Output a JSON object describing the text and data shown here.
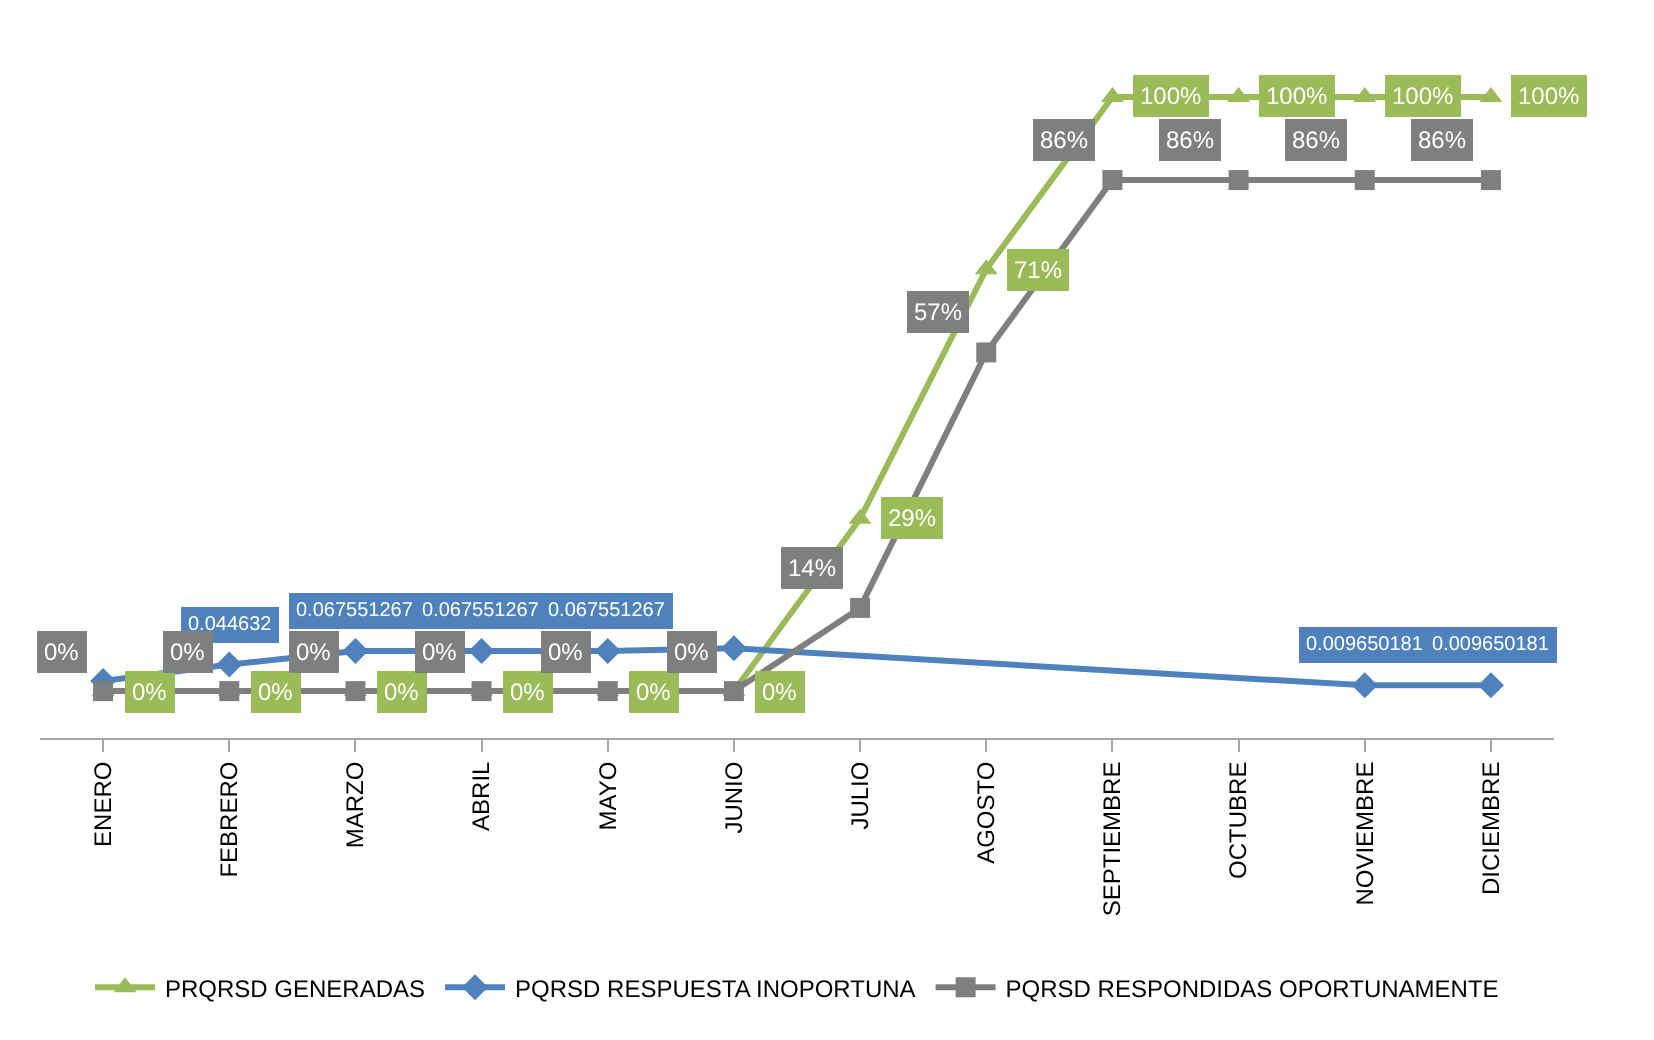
{
  "chart_data": {
    "type": "line",
    "categories": [
      "ENERO",
      "FEBRERO",
      "MARZO",
      "ABRIL",
      "MAYO",
      "JUNIO",
      "JULIO",
      "AGOSTO",
      "SEPTIEMBRE",
      "OCTUBRE",
      "NOVIEMBRE",
      "DICIEMBRE"
    ],
    "grid": false,
    "legend": "bottom",
    "tick_labels": "x",
    "data_labels": false,
    "series": [
      {
        "name": "PRQRSD GENERADAS",
        "color": "#9bbb59",
        "marker": "triangle",
        "values": [
          0,
          0,
          0,
          0,
          0,
          0,
          0.29,
          0.71,
          1,
          1,
          1,
          1
        ],
        "value_labels": [
          "0%",
          "0%",
          "0%",
          "0%",
          "0%",
          "0%",
          "29%",
          "71%",
          "100%",
          "100%",
          "100%",
          "100%"
        ]
      },
      {
        "name": "PQRSD RESPUESTA INOPORTUNA",
        "color": "#4f81bd",
        "marker": "diamond",
        "values": [
          0.017,
          0.044632,
          0.067551267,
          0.067551267,
          0.067551267,
          0.072,
          null,
          null,
          null,
          null,
          0.009650181,
          0.009650181
        ],
        "value_labels": [
          null,
          "0.044632",
          "0.067551267",
          "0.067551267",
          "0.067551267",
          null,
          null,
          null,
          null,
          null,
          "0.009650181",
          "0.009650181"
        ]
      },
      {
        "name": "PQRSD RESPONDIDAS OPORTUNAMENTE",
        "color": "#7f7f7f",
        "marker": "square",
        "values": [
          0,
          0,
          0,
          0,
          0,
          0,
          0.14,
          0.57,
          0.86,
          0.86,
          0.86,
          0.86
        ],
        "value_labels": [
          "0%",
          "0%",
          "0%",
          "0%",
          "0%",
          "0%",
          "14%",
          "57%",
          "86%",
          "86%",
          "86%",
          "86%"
        ]
      }
    ]
  }
}
